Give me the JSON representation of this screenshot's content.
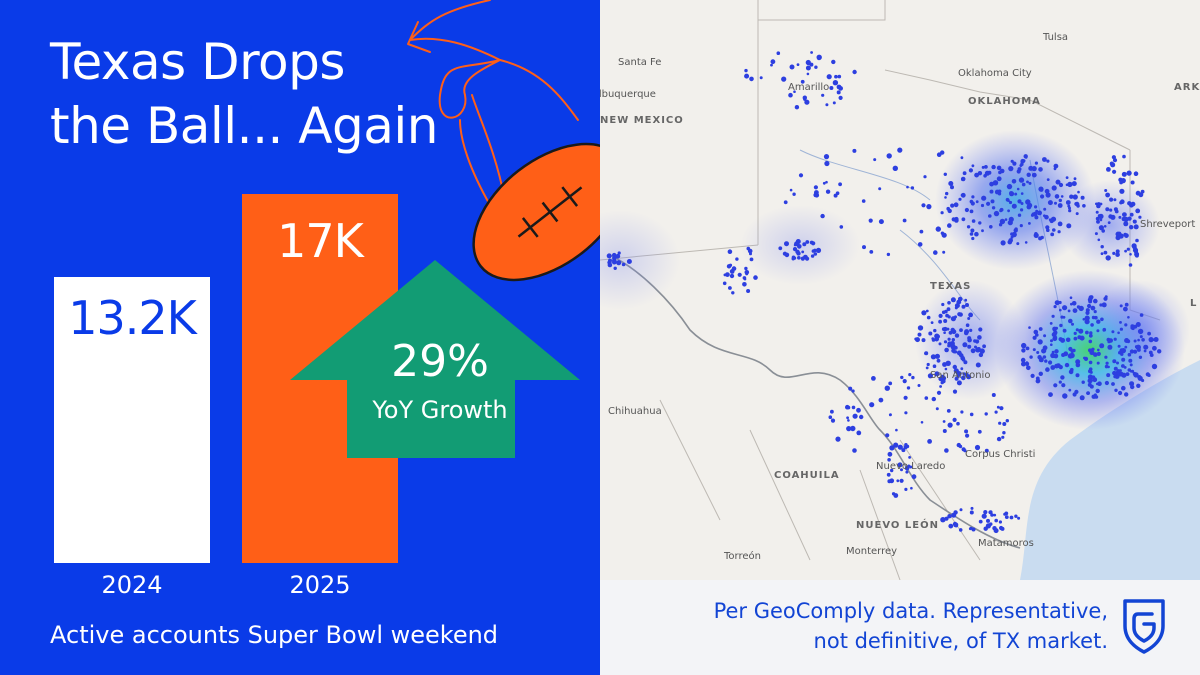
{
  "title": {
    "line1": "Texas Drops",
    "line2": "the Ball... Again"
  },
  "chart_data": {
    "type": "bar",
    "categories": [
      "2024",
      "2025"
    ],
    "values": [
      13200,
      17000
    ],
    "data_labels": [
      "13.2K",
      "17K"
    ],
    "colors": [
      "#ffffff",
      "#ff5f17"
    ],
    "label_colors": [
      "#0a3be8",
      "#ffffff"
    ],
    "title": "Texas Drops the Ball... Again",
    "xlabel": "Active accounts Super Bowl weekend",
    "ylabel": "",
    "ylim": [
      0,
      21200
    ]
  },
  "caption": "Active accounts Super Bowl weekend",
  "growth": {
    "percent": "29%",
    "label": "YoY Growth",
    "color": "#129c74"
  },
  "colors": {
    "background": "#0a3be8",
    "football": "#ff5f17",
    "note_text": "#1244d4"
  },
  "map": {
    "cities": [
      "Tulsa",
      "Santa Fe",
      "Oklahoma City",
      "Albuquerque",
      "Amarillo",
      "Shreveport",
      "Chihuahua",
      "San Antonio",
      "Nuevo Laredo",
      "Corpus Christi",
      "Monterrey",
      "Matamoros",
      "Torreón"
    ],
    "regions": [
      "OKLAHOMA",
      "NEW MEXICO",
      "TEXAS",
      "COAHUILA",
      "NUEVO LEÓN",
      "ARKA",
      "L"
    ]
  },
  "footer": {
    "note_line1": "Per GeoComply data. Representative,",
    "note_line2": "not definitive, of TX market.",
    "logo_icon": "geocomply-shield-icon"
  }
}
